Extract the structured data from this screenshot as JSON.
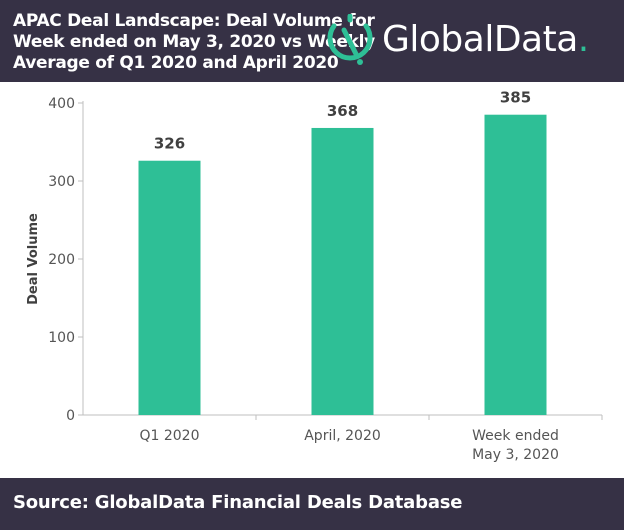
{
  "header": {
    "title_lines": [
      "APAC Deal Landscape: Deal Volume for",
      "Week ended on May 3, 2020 vs Weekly",
      "Average of Q1 2020 and April 2020"
    ],
    "logo_text": "GlobalData",
    "logo_dot": "."
  },
  "colors": {
    "header_bg": "#363145",
    "bar": "#2ebf96",
    "brand_accent": "#2ebf96"
  },
  "icons": [
    "globaldata-logo-icon"
  ],
  "chart_data": {
    "type": "bar",
    "categories": [
      [
        "Q1 2020"
      ],
      [
        "April, 2020"
      ],
      [
        "Week ended",
        "May 3, 2020"
      ]
    ],
    "values": [
      326,
      368,
      385
    ],
    "data_labels": [
      "326",
      "368",
      "385"
    ],
    "xlabel": "",
    "ylabel": "Deal Volume",
    "ylim": [
      0,
      400
    ],
    "yticks": [
      0,
      100,
      200,
      300,
      400
    ],
    "grid": false,
    "legend": "none"
  },
  "footer": {
    "source": "Source: GlobalData Financial Deals Database"
  }
}
